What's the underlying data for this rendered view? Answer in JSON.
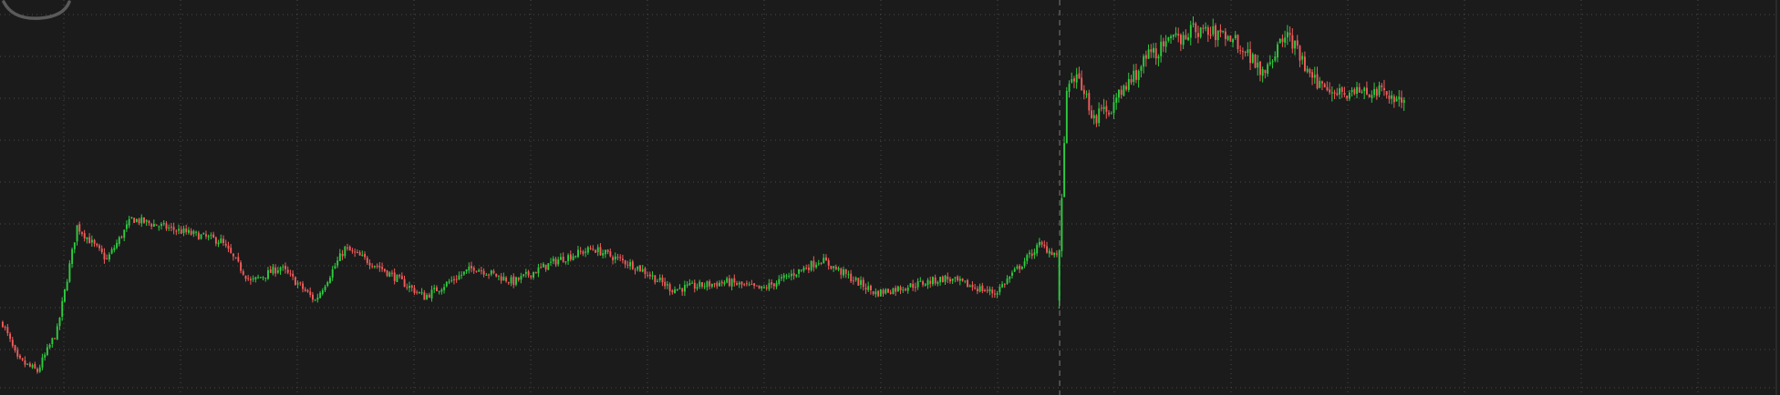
{
  "theme": {
    "background": "#1b1b1b",
    "grid_color": "#4a4a4a",
    "up_color": "#2ecc40",
    "down_color": "#f25c5c",
    "session_divider_color": "#6e6e6e",
    "right_axis_color": "#3a3a3a"
  },
  "logo": {
    "shape": "partial-oval-watermark",
    "color": "#5a5a5a"
  },
  "chart_data": {
    "type": "candlestick",
    "title": "",
    "xlabel": "",
    "ylabel": "",
    "grid": true,
    "grid_style": "dotted",
    "session_divider_after_index": 425,
    "ylim": [
      0,
      100
    ],
    "anchors": [
      [
        0,
        16
      ],
      [
        6,
        6
      ],
      [
        14,
        3
      ],
      [
        22,
        14
      ],
      [
        30,
        42
      ],
      [
        42,
        33
      ],
      [
        52,
        44
      ],
      [
        64,
        42
      ],
      [
        88,
        38
      ],
      [
        100,
        27
      ],
      [
        112,
        31
      ],
      [
        126,
        22
      ],
      [
        138,
        36
      ],
      [
        152,
        31
      ],
      [
        170,
        23
      ],
      [
        190,
        31
      ],
      [
        206,
        27
      ],
      [
        224,
        33
      ],
      [
        238,
        36
      ],
      [
        256,
        31
      ],
      [
        270,
        25
      ],
      [
        292,
        27
      ],
      [
        306,
        25
      ],
      [
        330,
        33
      ],
      [
        352,
        24
      ],
      [
        380,
        28
      ],
      [
        400,
        24
      ],
      [
        418,
        37
      ],
      [
        426,
        34
      ],
      [
        429,
        78
      ],
      [
        434,
        82
      ],
      [
        440,
        71
      ],
      [
        448,
        75
      ],
      [
        462,
        88
      ],
      [
        480,
        95
      ],
      [
        496,
        93
      ],
      [
        508,
        84
      ],
      [
        518,
        94
      ],
      [
        528,
        81
      ],
      [
        542,
        78
      ],
      [
        556,
        78
      ],
      [
        565,
        76
      ]
    ]
  }
}
